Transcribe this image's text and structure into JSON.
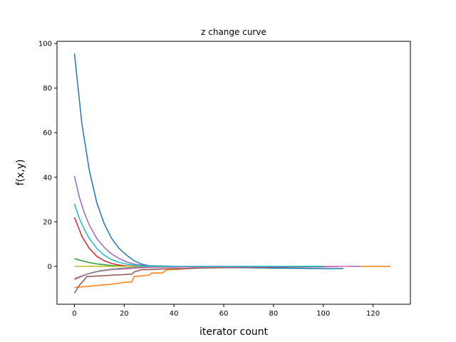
{
  "chart_data": {
    "type": "line",
    "title": "z change curve",
    "xlabel": "iterator count",
    "ylabel": "f(x,y)",
    "xlim": [
      -7,
      135
    ],
    "ylim": [
      -17,
      101
    ],
    "x_ticks": [
      0,
      20,
      40,
      60,
      80,
      100,
      120
    ],
    "y_ticks": [
      0,
      20,
      40,
      60,
      80,
      100
    ],
    "grid": false,
    "legend": "none",
    "series": [
      {
        "color": "#1f77b4",
        "x": [
          0,
          3,
          6,
          9,
          12,
          15,
          18,
          21,
          24,
          27,
          30,
          40,
          60,
          80,
          100,
          108
        ],
        "y": [
          95.5,
          64,
          43,
          28.5,
          19,
          12.5,
          8,
          5,
          2.5,
          1,
          0.3,
          0,
          -0.5,
          -0.8,
          -1,
          -1
        ]
      },
      {
        "color": "#ff7f0e",
        "x": [
          0,
          5,
          10,
          15,
          20,
          23,
          24,
          25,
          30,
          31,
          35,
          36,
          37,
          40,
          45,
          46,
          50,
          60,
          80,
          100,
          127
        ],
        "y": [
          -9.5,
          -9,
          -8.5,
          -8,
          -7.2,
          -7,
          -4.5,
          -4.5,
          -4,
          -3,
          -3,
          -2.5,
          -1.5,
          -1.5,
          -1,
          -0.8,
          -0.5,
          -0.3,
          -0.1,
          0,
          0
        ]
      },
      {
        "color": "#2ca02c",
        "x": [
          0,
          3,
          6,
          9,
          12,
          15,
          18,
          21,
          25,
          30,
          40,
          60,
          80,
          100
        ],
        "y": [
          3.5,
          2.5,
          1.7,
          1.1,
          0.7,
          0.4,
          0.2,
          0.1,
          0,
          0,
          0,
          0,
          0,
          0
        ]
      },
      {
        "color": "#d62728",
        "x": [
          0,
          3,
          6,
          9,
          12,
          15,
          18,
          21,
          25,
          30,
          40,
          60,
          80,
          100
        ],
        "y": [
          22,
          13.5,
          8,
          4.5,
          2.5,
          1.3,
          0.6,
          0.2,
          0,
          0,
          0,
          0,
          0,
          0
        ]
      },
      {
        "color": "#9467bd",
        "x": [
          0,
          2,
          4,
          6,
          9,
          12,
          15,
          18,
          21,
          24,
          27,
          30,
          40,
          60,
          80,
          100,
          115
        ],
        "y": [
          40.5,
          31,
          24,
          18.5,
          12.5,
          8.5,
          5.5,
          3.5,
          2,
          1,
          0.5,
          0.2,
          0,
          0,
          0,
          0,
          0
        ]
      },
      {
        "color": "#8c564b",
        "x": [
          0,
          2,
          4,
          5,
          7,
          10,
          15,
          20,
          23,
          24,
          27,
          30,
          35,
          40,
          45,
          50,
          60,
          80,
          100,
          110
        ],
        "y": [
          -12,
          -8.5,
          -6,
          -4.5,
          -4.5,
          -4.3,
          -4,
          -3.7,
          -3.5,
          -2.5,
          -1.5,
          -1.5,
          -1.2,
          -1,
          -1,
          -0.8,
          -0.6,
          -0.4,
          -0.2,
          0
        ]
      },
      {
        "color": "#e377c2",
        "x": [
          0,
          5,
          10,
          15,
          20,
          25,
          30,
          40,
          60,
          80,
          100,
          110
        ],
        "y": [
          -6,
          -3.5,
          -2.2,
          -1.5,
          -1.2,
          -0.8,
          -0.6,
          -0.4,
          -0.2,
          -0.1,
          0,
          0
        ]
      },
      {
        "color": "#7f7f7f",
        "x": [
          0,
          5,
          10,
          15,
          20,
          25,
          30,
          40,
          60,
          80,
          100
        ],
        "y": [
          -5.5,
          -3.5,
          -2,
          -1.3,
          -0.8,
          -0.4,
          -0.2,
          0,
          0,
          0,
          0
        ]
      },
      {
        "color": "#bcbd22",
        "x": [
          0,
          10,
          20,
          30,
          40,
          60,
          80,
          100
        ],
        "y": [
          0,
          0,
          0,
          0,
          0,
          0,
          0,
          0
        ]
      },
      {
        "color": "#17becf",
        "x": [
          0,
          2,
          4,
          6,
          9,
          12,
          15,
          18,
          21,
          24,
          27,
          30,
          40,
          60,
          80,
          100
        ],
        "y": [
          28,
          21.5,
          16.5,
          12.5,
          8,
          5,
          3,
          1.8,
          1,
          0.5,
          0.2,
          0.1,
          0,
          0,
          0,
          0
        ]
      }
    ]
  }
}
